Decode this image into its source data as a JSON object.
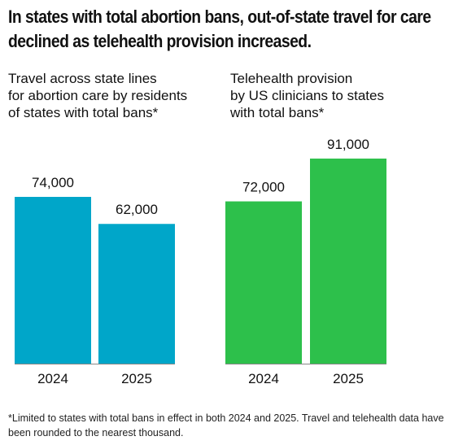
{
  "title_lines": [
    "In states with total abortion bans, out-of-state travel for care",
    "declined as telehealth provision increased."
  ],
  "colors": {
    "travel": "#00a6c9",
    "telehealth": "#2dc04b",
    "axis": "#888888"
  },
  "chart_data": [
    {
      "type": "bar",
      "title_lines": [
        "Travel across state lines",
        "for abortion care by residents",
        "of states with total bans*"
      ],
      "categories": [
        "2024",
        "2025"
      ],
      "values": [
        74000,
        62000
      ],
      "value_labels": [
        "74,000",
        "62,000"
      ],
      "ylim": [
        0,
        100000
      ]
    },
    {
      "type": "bar",
      "title_lines": [
        "Telehealth provision",
        "by US clinicians to states",
        "with total bans*"
      ],
      "categories": [
        "2024",
        "2025"
      ],
      "values": [
        72000,
        91000
      ],
      "value_labels": [
        "72,000",
        "91,000"
      ],
      "ylim": [
        0,
        100000
      ]
    }
  ],
  "footnote": "*Limited to states with total bans in effect in both 2024 and 2025. Travel and telehealth data have been rounded to the nearest thousand."
}
